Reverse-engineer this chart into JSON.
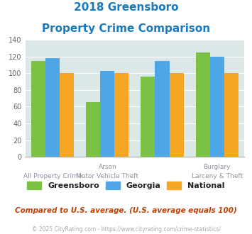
{
  "title_line1": "2018 Greensboro",
  "title_line2": "Property Crime Comparison",
  "greensboro": [
    115,
    65,
    96,
    125
  ],
  "georgia": [
    118,
    103,
    115,
    120
  ],
  "national": [
    100,
    100,
    100,
    100
  ],
  "greensboro_color": "#7bc143",
  "georgia_color": "#4da6e8",
  "national_color": "#f5a623",
  "bg_color": "#dce8e8",
  "ylim": [
    0,
    140
  ],
  "yticks": [
    0,
    20,
    40,
    60,
    80,
    100,
    120,
    140
  ],
  "top_labels": [
    "",
    "Arson",
    "",
    "Burglary"
  ],
  "bottom_labels": [
    "All Property Crime",
    "Motor Vehicle Theft",
    "",
    "Larceny & Theft"
  ],
  "footnote": "Compared to U.S. average. (U.S. average equals 100)",
  "copyright": "© 2025 CityRating.com - https://www.cityrating.com/crime-statistics/",
  "legend_labels": [
    "Greensboro",
    "Georgia",
    "National"
  ],
  "title_color": "#1a7abf",
  "label_color": "#9090a0",
  "footnote_color": "#c04000",
  "copyright_color": "#aaaaaa"
}
